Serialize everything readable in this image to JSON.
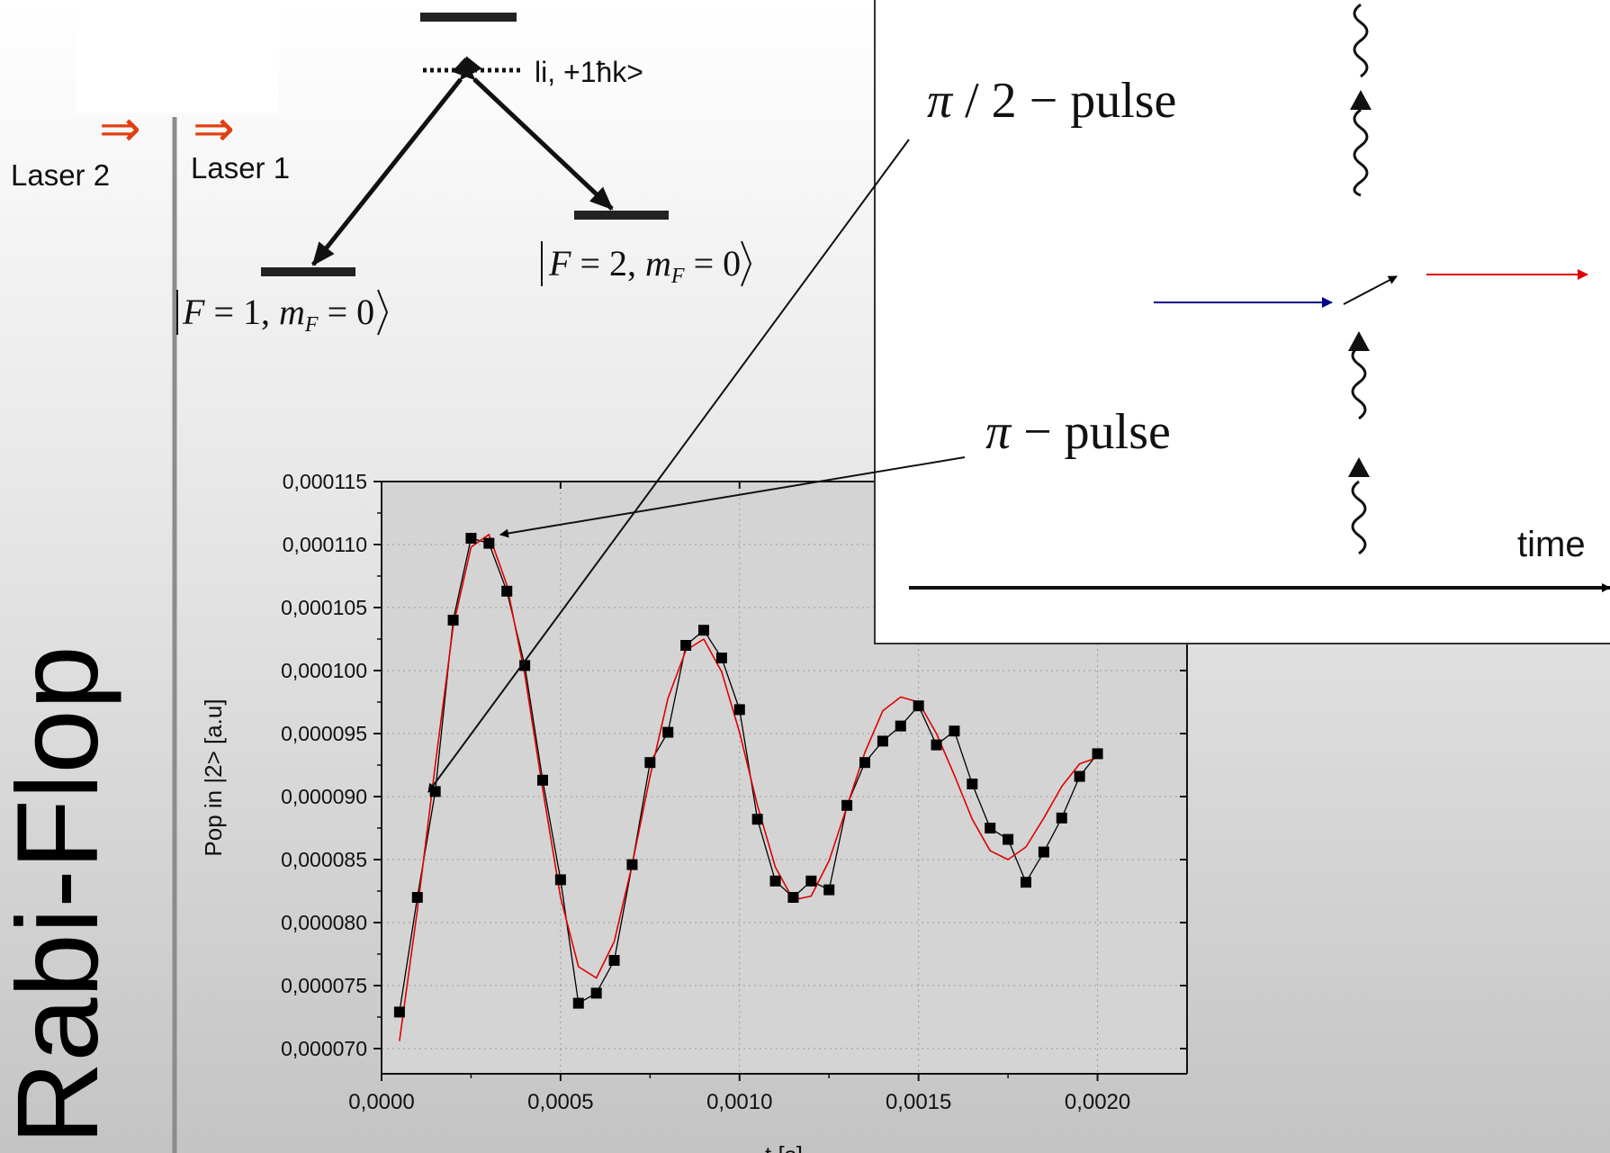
{
  "slide_title": "Rabi-Flop",
  "lasers": {
    "laser1": "Laser 1",
    "laser2": "Laser 2",
    "arrow_glyph": "⇒"
  },
  "levels": {
    "intermediate": "li, +1ћk>",
    "ground": {
      "var": "F",
      "eq1": " = 1, ",
      "sub_var": "m",
      "sub": "F",
      "eq2": " = 0"
    },
    "excited": {
      "var": "F",
      "eq1": " = 2, ",
      "sub_var": "m",
      "sub": "F",
      "eq2": " = 0"
    }
  },
  "inset": {
    "pulse_half": {
      "symbol": "π",
      "text": " / 2 − pulse"
    },
    "pulse_pi": {
      "symbol": "π",
      "text": " − pulse"
    },
    "time_label": "time"
  },
  "colors": {
    "fit_line": "#e00000",
    "data": "#000000",
    "laser_arrow": "#e04010",
    "blue_beam": "#00008b",
    "red_beam": "#e00000"
  },
  "chart_data": {
    "type": "scatter",
    "xlabel": "t [s]",
    "ylabel": "Pop in |2> [a.u]",
    "xlim": [
      0.0,
      0.00225
    ],
    "ylim": [
      6.8e-05,
      0.000115
    ],
    "x_ticks": [
      "0,0000",
      "0,0005",
      "0,0010",
      "0,0015",
      "0,0020"
    ],
    "x_tick_values": [
      0.0,
      0.0005,
      0.001,
      0.0015,
      0.002
    ],
    "y_ticks": [
      "0,000070",
      "0,000075",
      "0,000080",
      "0,000085",
      "0,000090",
      "0,000095",
      "0,000100",
      "0,000105",
      "0,000110",
      "0,000115"
    ],
    "y_tick_values": [
      7e-05,
      7.5e-05,
      8e-05,
      8.5e-05,
      9e-05,
      9.5e-05,
      0.0001,
      0.000105,
      0.00011,
      0.000115
    ],
    "series": [
      {
        "x": [
          5e-05,
          0.0001,
          0.00015,
          0.0002,
          0.00025,
          0.0003,
          0.00035,
          0.0004,
          0.00045,
          0.0005,
          0.00055,
          0.0006,
          0.00065,
          0.0007,
          0.00075,
          0.0008,
          0.00085,
          0.0009,
          0.00095,
          0.001,
          0.00105,
          0.0011,
          0.00115,
          0.0012,
          0.00125,
          0.0013,
          0.00135,
          0.0014,
          0.00145,
          0.0015,
          0.00155,
          0.0016,
          0.00165,
          0.0017,
          0.00175,
          0.0018,
          0.00185,
          0.0019,
          0.00195,
          0.002
        ],
        "y": [
          7.29e-05,
          8.2e-05,
          9.04e-05,
          0.000104,
          0.0001105,
          0.0001101,
          0.0001063,
          0.0001004,
          9.13e-05,
          8.34e-05,
          7.36e-05,
          7.44e-05,
          7.7e-05,
          8.46e-05,
          9.27e-05,
          9.51e-05,
          0.000102,
          0.0001032,
          0.000101,
          9.69e-05,
          8.82e-05,
          8.33e-05,
          8.2e-05,
          8.33e-05,
          8.26e-05,
          8.93e-05,
          9.27e-05,
          9.44e-05,
          9.56e-05,
          9.72e-05,
          9.41e-05,
          9.52e-05,
          9.1e-05,
          8.75e-05,
          8.66e-05,
          8.32e-05,
          8.56e-05,
          8.83e-05,
          9.16e-05,
          9.34e-05
        ]
      },
      {
        "x": [
          5e-05,
          0.0001,
          0.00015,
          0.0002,
          0.00025,
          0.0003,
          0.00035,
          0.0004,
          0.00045,
          0.0005,
          0.00055,
          0.0006,
          0.00065,
          0.0007,
          0.00075,
          0.0008,
          0.00085,
          0.0009,
          0.00095,
          0.001,
          0.00105,
          0.0011,
          0.00115,
          0.0012,
          0.00125,
          0.0013,
          0.00135,
          0.0014,
          0.00145,
          0.0015,
          0.00155,
          0.0016,
          0.00165,
          0.0017,
          0.00175,
          0.0018,
          0.00185,
          0.0019,
          0.00195,
          0.002
        ],
        "y": [
          7.06e-05,
          8.1e-05,
          9.25e-05,
          0.0001035,
          0.0001098,
          0.0001108,
          0.0001068,
          9.97e-05,
          9.06e-05,
          8.2e-05,
          7.65e-05,
          7.56e-05,
          7.85e-05,
          8.46e-05,
          9.16e-05,
          9.78e-05,
          0.0001016,
          0.0001025,
          9.99e-05,
          9.51e-05,
          8.93e-05,
          8.44e-05,
          8.18e-05,
          8.21e-05,
          8.49e-05,
          8.92e-05,
          9.35e-05,
          9.68e-05,
          9.79e-05,
          9.75e-05,
          9.5e-05,
          9.17e-05,
          8.82e-05,
          8.57e-05,
          8.5e-05,
          8.6e-05,
          8.83e-05,
          9.08e-05,
          9.26e-05,
          9.31e-05
        ]
      }
    ]
  }
}
